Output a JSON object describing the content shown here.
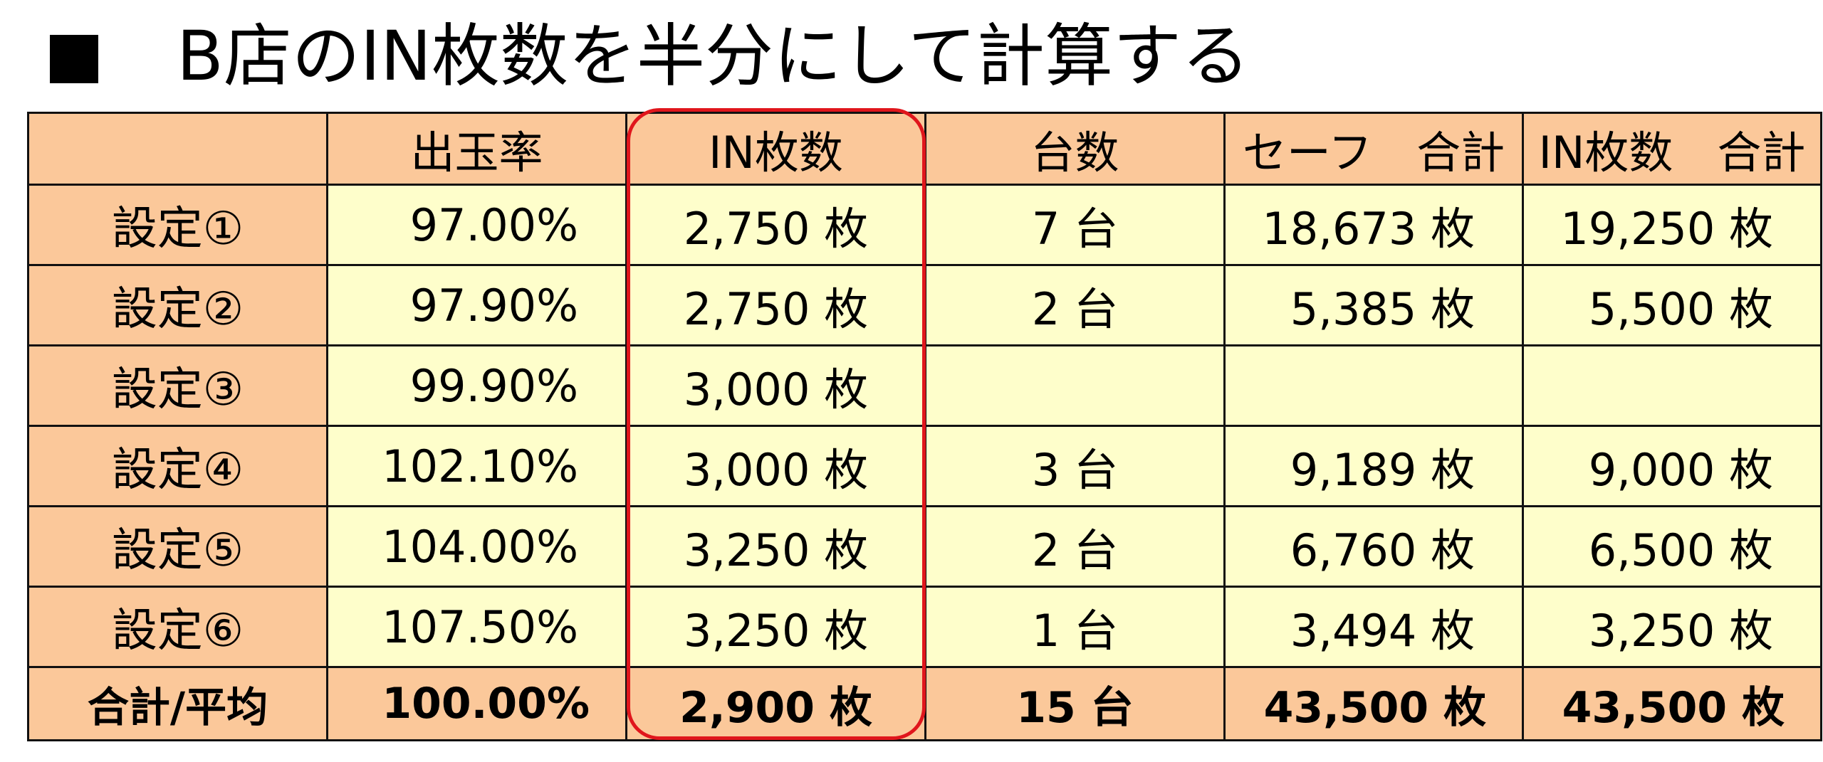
{
  "title": {
    "bullet": "■",
    "text": "B店のIN枚数を半分にして計算する"
  },
  "table": {
    "headers": [
      "",
      "出玉率",
      "IN枚数",
      "台数",
      "セーフ　合計",
      "IN枚数　合計"
    ],
    "rows": [
      {
        "label": "設定①",
        "rate": "97.00%",
        "in": "2,750 枚",
        "units": "7 台",
        "safe": "18,673 枚",
        "in_total": "19,250 枚"
      },
      {
        "label": "設定②",
        "rate": "97.90%",
        "in": "2,750 枚",
        "units": "2 台",
        "safe": "5,385 枚",
        "in_total": "5,500 枚"
      },
      {
        "label": "設定③",
        "rate": "99.90%",
        "in": "3,000 枚",
        "units": "",
        "safe": "",
        "in_total": ""
      },
      {
        "label": "設定④",
        "rate": "102.10%",
        "in": "3,000 枚",
        "units": "3 台",
        "safe": "9,189 枚",
        "in_total": "9,000 枚"
      },
      {
        "label": "設定⑤",
        "rate": "104.00%",
        "in": "3,250 枚",
        "units": "2 台",
        "safe": "6,760 枚",
        "in_total": "6,500 枚"
      },
      {
        "label": "設定⑥",
        "rate": "107.50%",
        "in": "3,250 枚",
        "units": "1 台",
        "safe": "3,494 枚",
        "in_total": "3,250 枚"
      }
    ],
    "total": {
      "label": "合計/平均",
      "rate": "100.00%",
      "in": "2,900 枚",
      "units": "15 台",
      "safe": "43,500 枚",
      "in_total": "43,500 枚"
    }
  },
  "colors": {
    "header_bg": "#fbc89a",
    "cell_bg": "#fefecb",
    "highlight": "#e0161c"
  }
}
